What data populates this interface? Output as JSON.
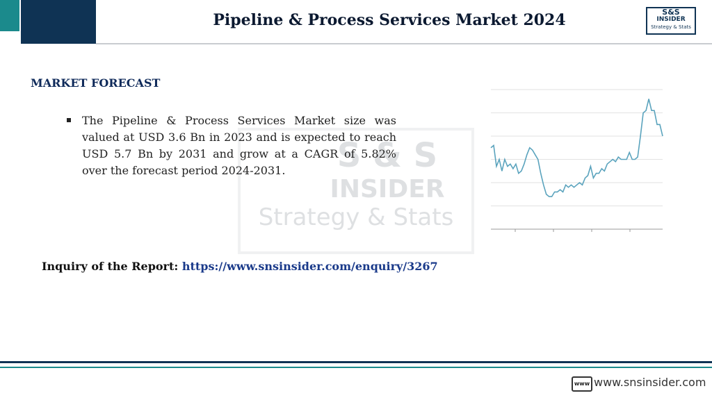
{
  "header": {
    "title": "Pipeline & Process Services Market  2024",
    "logo": {
      "top": "S&S",
      "middle": "INSIDER",
      "bottom": "Strategy & Stats"
    }
  },
  "watermark": {
    "top": "S & S",
    "middle": "INSIDER",
    "bottom": "Strategy & Stats"
  },
  "section": {
    "heading": "MARKET FORECAST",
    "bullets": [
      "The Pipeline & Process Services Market size was valued at USD 3.6 Bn in 2023 and is expected to reach USD 5.7 Bn by 2031 and grow at a CAGR of 5.82% over the forecast period 2024-2031."
    ]
  },
  "inquiry": {
    "label": "Inquiry of the Report:",
    "link": "https://www.snsinsider.com/enquiry/3267"
  },
  "footer": {
    "icon": "www",
    "site": "www.snsinsider.com"
  },
  "chart": {
    "type": "line",
    "color": "#5aa3bd",
    "grid": true,
    "ylim": [
      0,
      6
    ],
    "yticks": [
      1,
      2,
      3,
      4,
      5,
      6
    ],
    "values": [
      3.5,
      3.6,
      2.7,
      3.0,
      2.5,
      3.0,
      2.7,
      2.8,
      2.6,
      2.8,
      2.4,
      2.5,
      2.8,
      3.2,
      3.5,
      3.4,
      3.2,
      3.0,
      2.4,
      1.9,
      1.5,
      1.4,
      1.4,
      1.6,
      1.6,
      1.7,
      1.6,
      1.9,
      1.8,
      1.9,
      1.8,
      1.9,
      2.0,
      1.9,
      2.2,
      2.3,
      2.7,
      2.2,
      2.4,
      2.4,
      2.6,
      2.5,
      2.8,
      2.9,
      3.0,
      2.9,
      3.1,
      3.0,
      3.0,
      3.0,
      3.3,
      3.0,
      3.0,
      3.1,
      4.0,
      5.0,
      5.1,
      5.6,
      5.1,
      5.1,
      4.5,
      4.5,
      4.0
    ]
  }
}
